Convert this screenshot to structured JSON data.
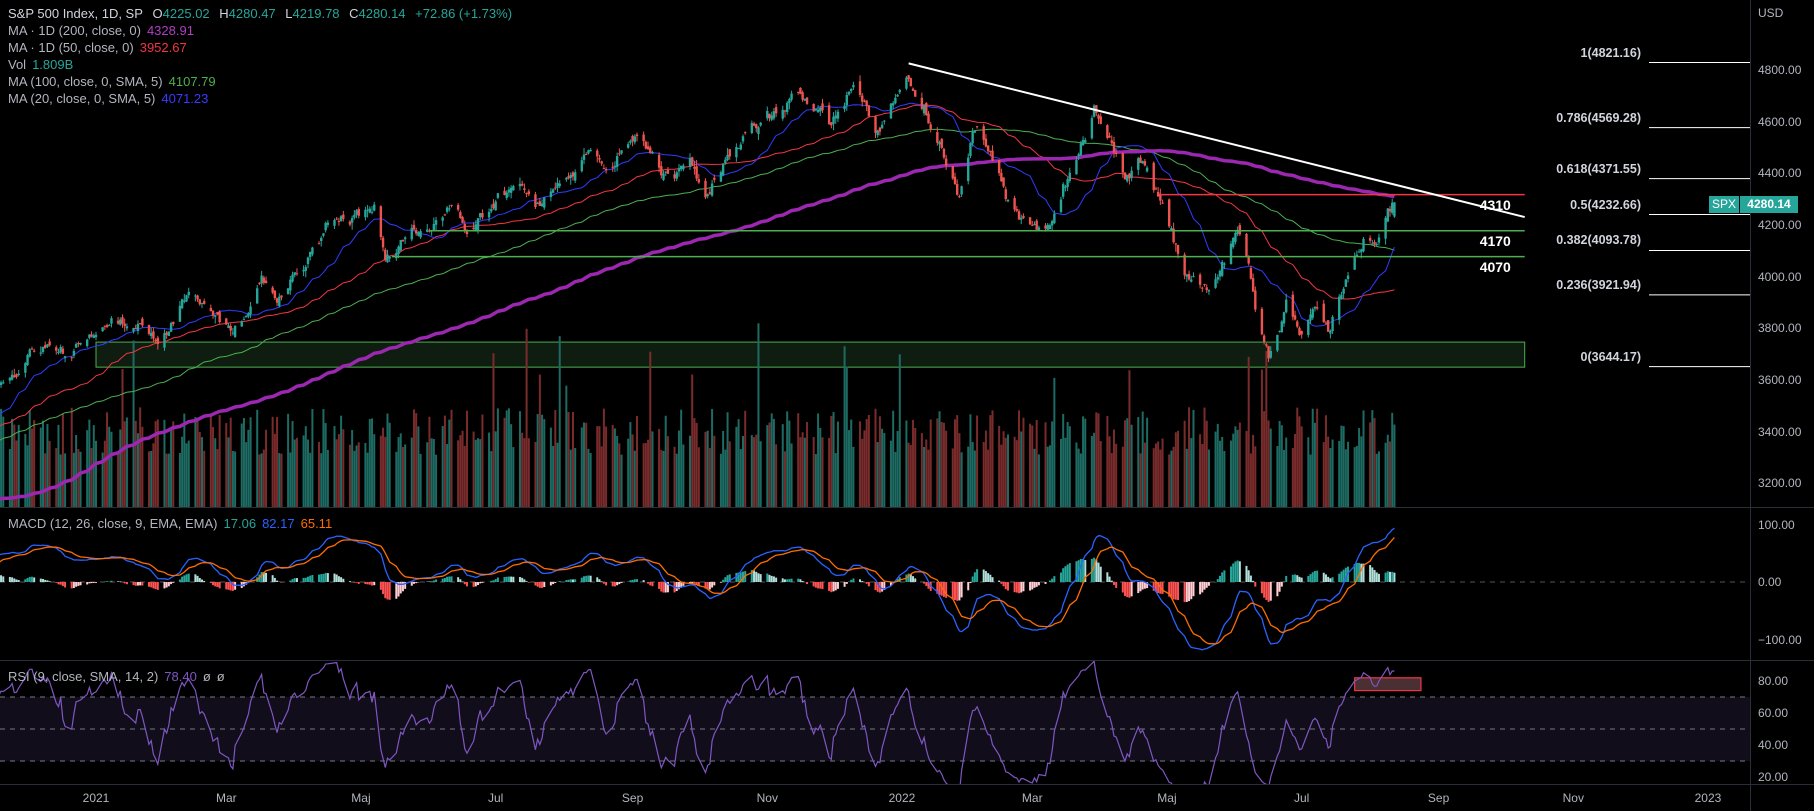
{
  "header": {
    "symbol": "S&P 500 Index, 1D, SP",
    "open_label": "O",
    "open": "4225.02",
    "high_label": "H",
    "high": "4280.47",
    "low_label": "L",
    "low": "4219.78",
    "close_label": "C",
    "close": "4280.14",
    "change": "+72.86 (+1.73%)"
  },
  "indicators": [
    {
      "name": "MA · 1D (200, close, 0)",
      "value": "4328.91",
      "color": "#b03fc4"
    },
    {
      "name": "MA · 1D (50, close, 0)",
      "value": "3952.67",
      "color": "#f23645"
    },
    {
      "name": "Vol",
      "value": "1.809B",
      "color": "#26a69a"
    },
    {
      "name": "MA (100, close, 0, SMA, 5)",
      "value": "4107.79",
      "color": "#4caf50"
    },
    {
      "name": "MA (20, close, 0, SMA, 5)",
      "value": "4071.23",
      "color": "#3a3aff"
    }
  ],
  "macd": {
    "name": "MACD (12, 26, close, 9, EMA, EMA)",
    "hist": "17.06",
    "macd": "82.17",
    "signal": "65.11"
  },
  "rsi": {
    "name": "RSI (9, close, SMA, 14, 2)",
    "value": "78.40",
    "extra1": "ø",
    "extra2": "ø"
  },
  "price_axis": {
    "currency": "USD",
    "symbol_badge": "SPX",
    "last_price": "4280.14"
  },
  "colors": {
    "up": "#26a69a",
    "down": "#ef5350",
    "ma200": "#9c27b0",
    "ma50": "#f23645",
    "ma100": "#4caf50",
    "ma20": "#2f3cff",
    "macd": "#2962ff",
    "signal": "#ff6d00",
    "rsi": "#7e57c2"
  },
  "chart_data": {
    "type": "candlestick",
    "title": "S&P 500 Index, 1D",
    "ylabel": "USD",
    "ylim": [
      3100,
      4900
    ],
    "y_ticks": [
      {
        "value": 4800,
        "label": "4800.00"
      },
      {
        "value": 4600,
        "label": "4600.00"
      },
      {
        "value": 4400,
        "label": "4400.00"
      },
      {
        "value": 4200,
        "label": "4200.00"
      },
      {
        "value": 4000,
        "label": "4000.00"
      },
      {
        "value": 3800,
        "label": "3800.00"
      },
      {
        "value": 3600,
        "label": "3600.00"
      },
      {
        "value": 3400,
        "label": "3400.00"
      },
      {
        "value": 3200,
        "label": "3200.00"
      }
    ],
    "x_ticks": [
      {
        "date": "2021-01-01",
        "label": "2021"
      },
      {
        "date": "2021-03-01",
        "label": "Mar"
      },
      {
        "date": "2021-05-01",
        "label": "Maj"
      },
      {
        "date": "2021-07-01",
        "label": "Jul"
      },
      {
        "date": "2021-09-01",
        "label": "Sep"
      },
      {
        "date": "2021-11-01",
        "label": "Nov"
      },
      {
        "date": "2022-01-01",
        "label": "2022"
      },
      {
        "date": "2022-03-01",
        "label": "Mar"
      },
      {
        "date": "2022-05-01",
        "label": "Maj"
      },
      {
        "date": "2022-07-01",
        "label": "Jul"
      },
      {
        "date": "2022-09-01",
        "label": "Sep"
      },
      {
        "date": "2022-11-01",
        "label": "Nov"
      },
      {
        "date": "2023-01-01",
        "label": "2023"
      }
    ],
    "close_anchors": [
      [
        "2020-01-02",
        3250
      ],
      [
        "2020-02-19",
        3386
      ],
      [
        "2020-03-23",
        2237
      ],
      [
        "2020-04-29",
        2939
      ],
      [
        "2020-06-08",
        3232
      ],
      [
        "2020-06-26",
        3009
      ],
      [
        "2020-08-31",
        3500
      ],
      [
        "2020-09-23",
        3237
      ],
      [
        "2020-10-12",
        3534
      ],
      [
        "2020-10-30",
        3270
      ],
      [
        "2020-11-09",
        3550
      ],
      [
        "2020-11-20",
        3557
      ],
      [
        "2020-12-08",
        3702
      ],
      [
        "2020-12-21",
        3694
      ],
      [
        "2021-01-08",
        3824
      ],
      [
        "2021-01-29",
        3714
      ],
      [
        "2021-02-12",
        3934
      ],
      [
        "2021-03-04",
        3768
      ],
      [
        "2021-03-17",
        3974
      ],
      [
        "2021-03-24",
        3889
      ],
      [
        "2021-04-16",
        4185
      ],
      [
        "2021-05-07",
        4232
      ],
      [
        "2021-05-12",
        4063
      ],
      [
        "2021-05-28",
        4204
      ],
      [
        "2021-06-14",
        4255
      ],
      [
        "2021-06-18",
        4166
      ],
      [
        "2021-07-12",
        4384
      ],
      [
        "2021-07-19",
        4258
      ],
      [
        "2021-08-13",
        4468
      ],
      [
        "2021-08-19",
        4405
      ],
      [
        "2021-09-02",
        4537
      ],
      [
        "2021-09-20",
        4358
      ],
      [
        "2021-09-27",
        4443
      ],
      [
        "2021-10-04",
        4300
      ],
      [
        "2021-10-21",
        4549
      ],
      [
        "2021-11-18",
        4704
      ],
      [
        "2021-11-30",
        4567
      ],
      [
        "2021-12-10",
        4712
      ],
      [
        "2021-12-20",
        4568
      ],
      [
        "2022-01-03",
        4796
      ],
      [
        "2022-01-27",
        4326
      ],
      [
        "2022-02-02",
        4589
      ],
      [
        "2022-02-23",
        4225
      ],
      [
        "2022-03-08",
        4170
      ],
      [
        "2022-03-29",
        4631
      ],
      [
        "2022-04-12",
        4397
      ],
      [
        "2022-04-20",
        4459
      ],
      [
        "2022-05-09",
        3991
      ],
      [
        "2022-05-20",
        3901
      ],
      [
        "2022-06-02",
        4176
      ],
      [
        "2022-06-16",
        3666
      ],
      [
        "2022-06-24",
        3912
      ],
      [
        "2022-06-30",
        3785
      ],
      [
        "2022-07-08",
        3899
      ],
      [
        "2022-07-14",
        3790
      ],
      [
        "2022-07-29",
        4130
      ],
      [
        "2022-08-05",
        4145
      ],
      [
        "2022-08-12",
        4280.14
      ]
    ],
    "last_candle": {
      "date": "2022-08-12",
      "open": 4225.02,
      "high": 4280.47,
      "low": 4219.78,
      "close": 4280.14
    },
    "display_from": "2020-11-18",
    "volume_last_billion": 1.809,
    "moving_averages": [
      200,
      50,
      100,
      20
    ],
    "trendline": {
      "from": [
        "2022-01-04",
        4818
      ],
      "to": [
        "2022-10-10",
        4223
      ]
    },
    "levels": [
      {
        "label": "4310",
        "price": 4310,
        "from": "2022-04-28",
        "color": "#f23645"
      },
      {
        "label": "4170",
        "price": 4170,
        "from": "2021-06-01",
        "color": "#4caf50"
      },
      {
        "label": "4070",
        "price": 4070,
        "from": "2021-05-15",
        "color": "#4caf50"
      }
    ],
    "levels_end": "2022-10-10",
    "support_zone": {
      "top": 3739,
      "bottom": 3642,
      "from": "2021-01-01",
      "to": "2022-10-10"
    },
    "fib": [
      {
        "ratio": 1,
        "price": 4821.16,
        "label": "1(4821.16)"
      },
      {
        "ratio": 0.786,
        "price": 4569.28,
        "label": "0.786(4569.28)"
      },
      {
        "ratio": 0.618,
        "price": 4371.55,
        "label": "0.618(4371.55)"
      },
      {
        "ratio": 0.5,
        "price": 4232.66,
        "label": "0.5(4232.66)"
      },
      {
        "ratio": 0.382,
        "price": 4093.78,
        "label": "0.382(4093.78)"
      },
      {
        "ratio": 0.236,
        "price": 3921.94,
        "label": "0.236(3921.94)"
      },
      {
        "ratio": 0,
        "price": 3644.17,
        "label": "0(3644.17)"
      }
    ],
    "macd_ticks": [
      {
        "value": 100,
        "label": "100.00"
      },
      {
        "value": 0,
        "label": "0.00"
      },
      {
        "value": -100,
        "label": "−100.00"
      }
    ],
    "rsi_ticks": [
      {
        "value": 80,
        "label": "80.00"
      },
      {
        "value": 60,
        "label": "60.00"
      },
      {
        "value": 40,
        "label": "40.00"
      },
      {
        "value": 20,
        "label": "20.00"
      }
    ],
    "rsi_bands": [
      70,
      50,
      30
    ],
    "rsi_highlight": {
      "from": "2022-07-25",
      "to": "2022-08-24",
      "top": 82,
      "bottom": 74
    }
  }
}
